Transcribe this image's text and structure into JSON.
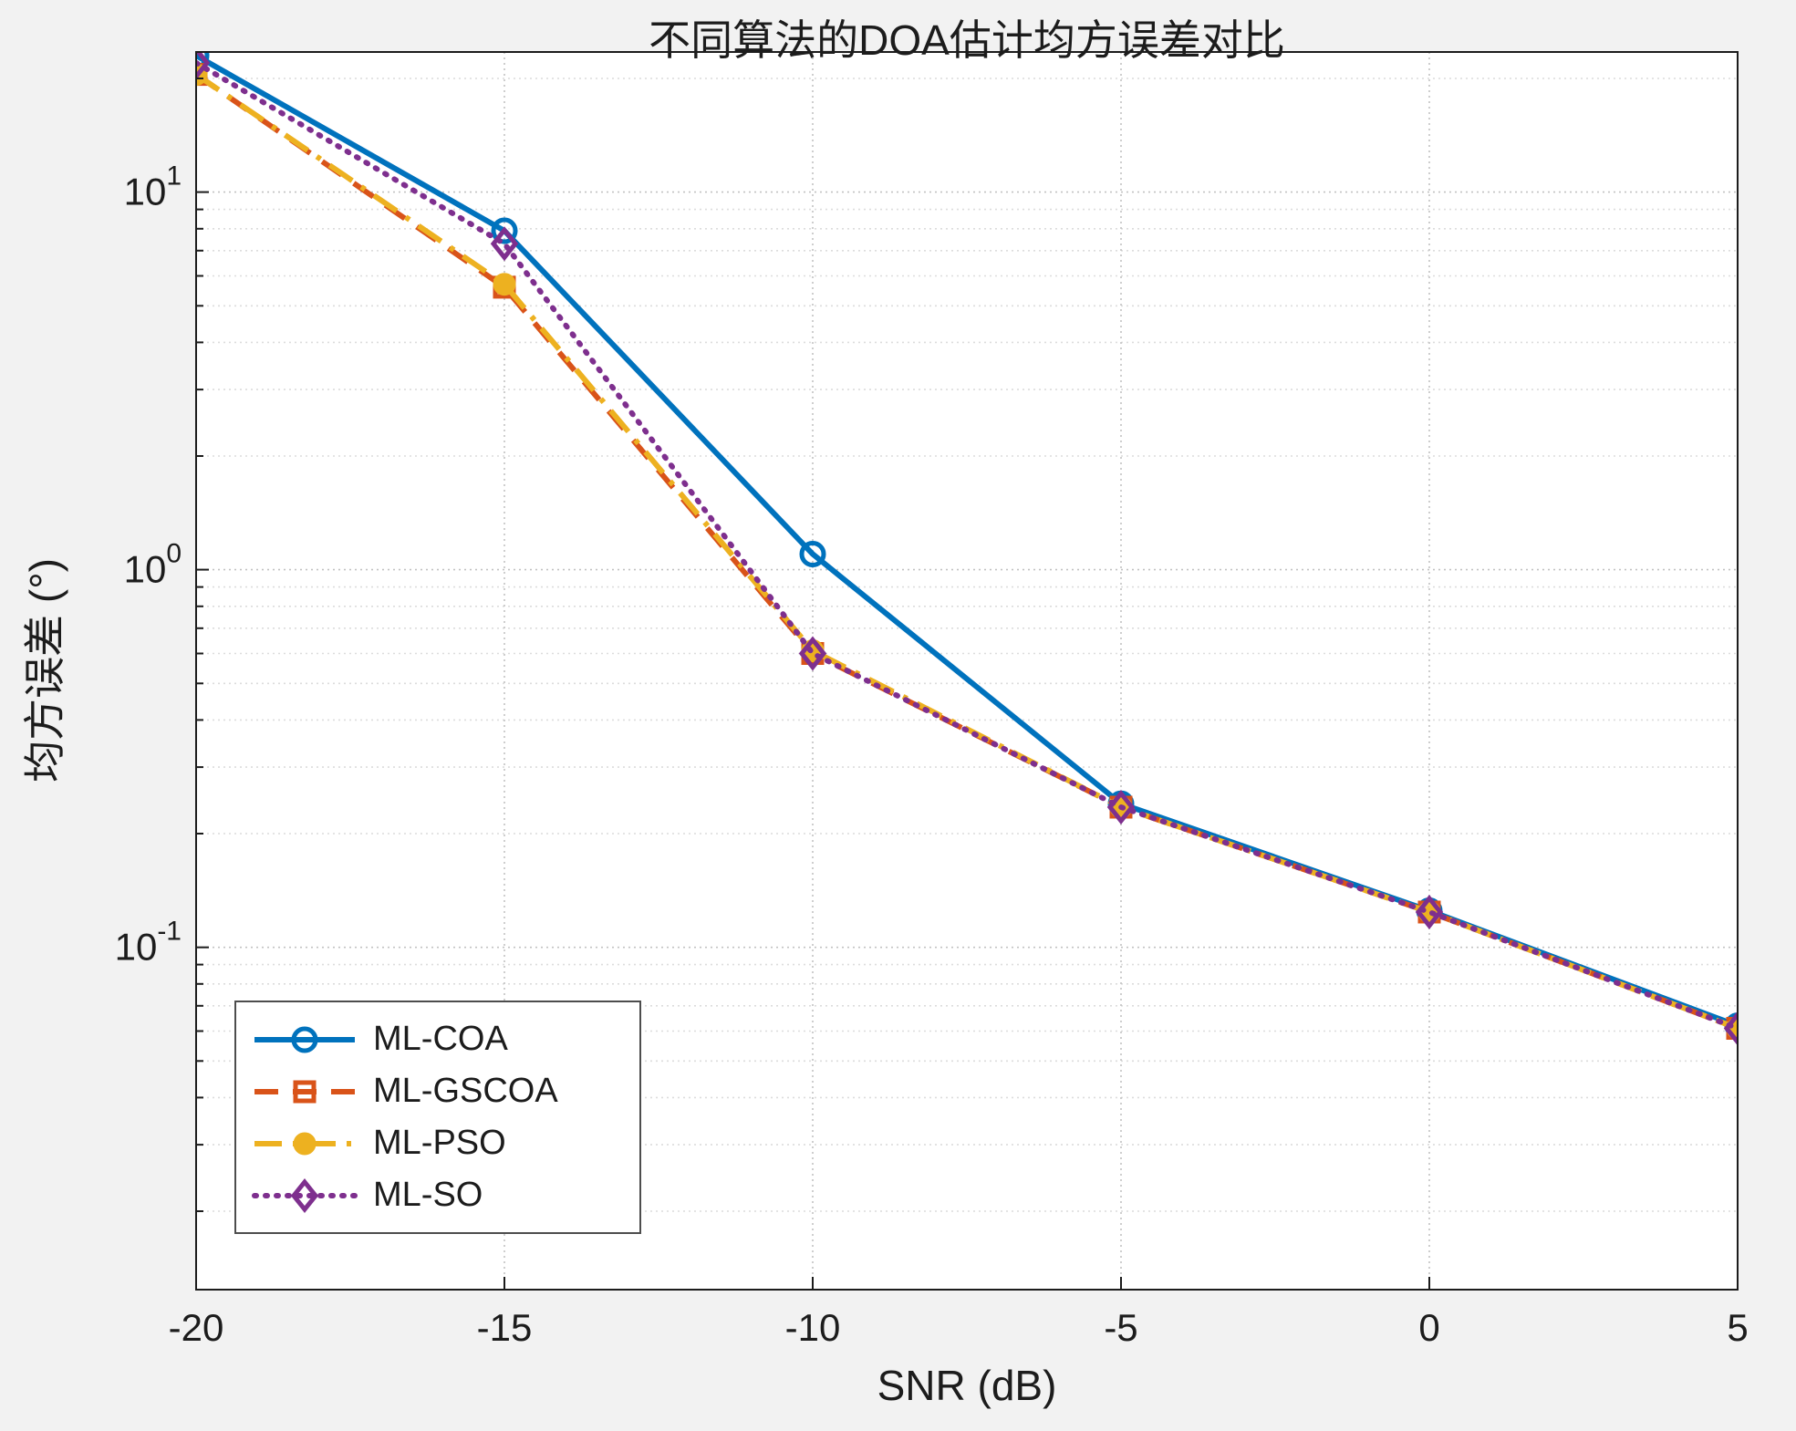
{
  "chart_data": {
    "type": "line",
    "title": "不同算法的DOA估计均方误差对比",
    "xlabel": "SNR (dB)",
    "ylabel": "均方误差 (°)",
    "x": [
      -20,
      -15,
      -10,
      -5,
      0,
      5
    ],
    "xlim": [
      -20,
      5
    ],
    "xticks": [
      -20,
      -15,
      -10,
      -5,
      0,
      5
    ],
    "yscale": "log",
    "ylim": [
      0.0124,
      23.5
    ],
    "yticks": [
      0.1,
      1,
      10
    ],
    "grid": true,
    "legend_position": "bottom-left",
    "plot_background": "#ffffff",
    "figure_background": "#f2f2f2",
    "axis_color": "#1c1c1c",
    "series": [
      {
        "name": "ML-COA",
        "color": "#0072BD",
        "line": "solid",
        "marker": "circle-open",
        "values": [
          23,
          7.9,
          1.1,
          0.24,
          0.125,
          0.062
        ]
      },
      {
        "name": "ML-GSCOA",
        "color": "#D95319",
        "line": "dashed",
        "marker": "square-open",
        "values": [
          20.5,
          5.6,
          0.6,
          0.235,
          0.124,
          0.061
        ]
      },
      {
        "name": "ML-PSO",
        "color": "#EDB120",
        "line": "dashdot",
        "marker": "circle-filled",
        "values": [
          20.5,
          5.7,
          0.61,
          0.235,
          0.124,
          0.061
        ]
      },
      {
        "name": "ML-SO",
        "color": "#7E2F8E",
        "line": "dotted",
        "marker": "diamond-open",
        "values": [
          22,
          7.3,
          0.6,
          0.235,
          0.124,
          0.061
        ]
      }
    ]
  }
}
